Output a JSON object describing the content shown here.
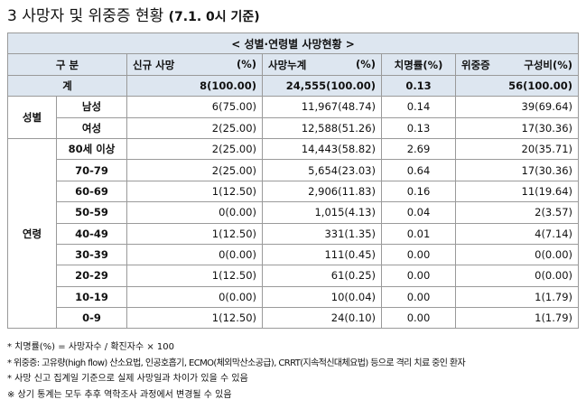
{
  "title": {
    "number": "3",
    "text": "사망자 및 위중증 현황",
    "date": "(7.1. 0시 기준)"
  },
  "band": "< 성별·연령별 사망현황 >",
  "headers": {
    "category": "구 분",
    "new_deaths": "신규 사망",
    "new_deaths_unit": "(%)",
    "cum_deaths": "사망누계",
    "cum_deaths_unit": "(%)",
    "fatality": "치명률(%)",
    "critical": "위중증",
    "critical_ratio": "구성비(%)"
  },
  "total": {
    "label": "계",
    "new": "8(100.00)",
    "cum": "24,555(100.00)",
    "fatality": "0.13",
    "critical": "56(100.00)"
  },
  "sex_group": "성별",
  "sex_rows": [
    {
      "label": "남성",
      "new": "6(75.00)",
      "cum": "11,967(48.74)",
      "fatality": "0.14",
      "critical": "39(69.64)"
    },
    {
      "label": "여성",
      "new": "2(25.00)",
      "cum": "12,588(51.26)",
      "fatality": "0.13",
      "critical": "17(30.36)"
    }
  ],
  "age_group": "연령",
  "age_rows": [
    {
      "label": "80세 이상",
      "new": "2(25.00)",
      "cum": "14,443(58.82)",
      "fatality": "2.69",
      "critical": "20(35.71)"
    },
    {
      "label": "70-79",
      "new": "2(25.00)",
      "cum": "5,654(23.03)",
      "fatality": "0.64",
      "critical": "17(30.36)"
    },
    {
      "label": "60-69",
      "new": "1(12.50)",
      "cum": "2,906(11.83)",
      "fatality": "0.16",
      "critical": "11(19.64)"
    },
    {
      "label": "50-59",
      "new": "0(0.00)",
      "cum": "1,015(4.13)",
      "fatality": "0.04",
      "critical": "2(3.57)"
    },
    {
      "label": "40-49",
      "new": "1(12.50)",
      "cum": "331(1.35)",
      "fatality": "0.01",
      "critical": "4(7.14)"
    },
    {
      "label": "30-39",
      "new": "0(0.00)",
      "cum": "111(0.45)",
      "fatality": "0.00",
      "critical": "0(0.00)"
    },
    {
      "label": "20-29",
      "new": "1(12.50)",
      "cum": "61(0.25)",
      "fatality": "0.00",
      "critical": "0(0.00)"
    },
    {
      "label": "10-19",
      "new": "0(0.00)",
      "cum": "10(0.04)",
      "fatality": "0.00",
      "critical": "1(1.79)"
    },
    {
      "label": "0-9",
      "new": "1(12.50)",
      "cum": "24(0.10)",
      "fatality": "0.00",
      "critical": "1(1.79)"
    }
  ],
  "notes": [
    "* 치명률(%) = 사망자수 / 확진자수 × 100",
    "* 위중증: 고유량(high flow) 산소요법, 인공호흡기, ECMO(체외막산소공급), CRRT(지속적신대체요법) 등으로 격리 치료 중인 환자",
    "* 사망 신고 집계일 기준으로 실제 사망일과 차이가 있을 수 있음",
    "※ 상기 통계는 모두 추후 역학조사 과정에서 변경될 수 있음"
  ]
}
